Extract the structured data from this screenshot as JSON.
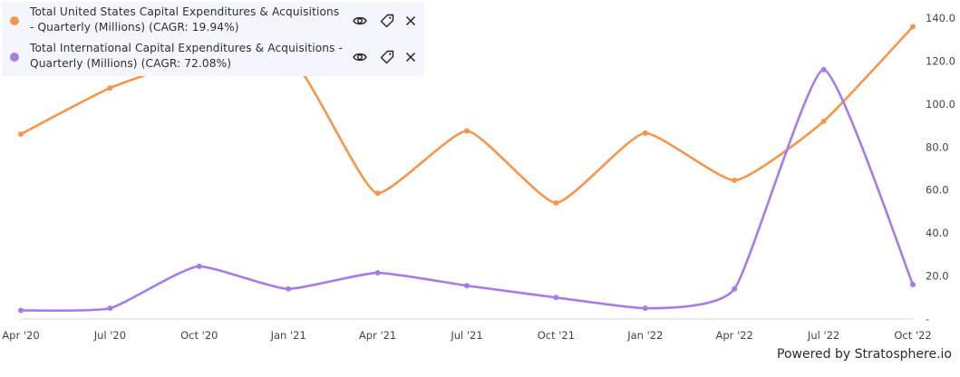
{
  "chart_data": {
    "type": "line",
    "x": [
      "Apr '20",
      "Jul '20",
      "Oct '20",
      "Jan '21",
      "Apr '21",
      "Jul '21",
      "Oct '21",
      "Jan '22",
      "Apr '22",
      "Jul '22",
      "Oct '22"
    ],
    "series": [
      {
        "name": "Total United States Capital Expenditures & Acquisitions - Quarterly (Millions) (CAGR: 19.94%)",
        "color": "#f7954c",
        "values": [
          86.0,
          107.5,
          121.0,
          121.5,
          58.5,
          87.5,
          54.0,
          86.5,
          64.5,
          92.0,
          136.0
        ]
      },
      {
        "name": "Total International Capital Expenditures & Acquisitions - Quarterly (Millions) (CAGR: 72.08%)",
        "color": "#a87ce8",
        "values": [
          4.0,
          5.0,
          24.5,
          14.0,
          21.5,
          15.5,
          10.0,
          5.0,
          14.0,
          116.0,
          16.0
        ]
      }
    ],
    "y_ticks": [
      "140.0",
      "120.0",
      "100.0",
      "80.0",
      "60.0",
      "40.0",
      "20.0",
      "-"
    ],
    "ylim": [
      0,
      140
    ],
    "grid": false,
    "legend_position": "top-left"
  },
  "legend_icons": [
    "eye-icon",
    "tag-icon",
    "close-icon"
  ],
  "footer": {
    "powered_by": "Powered by Stratosphere.io"
  }
}
